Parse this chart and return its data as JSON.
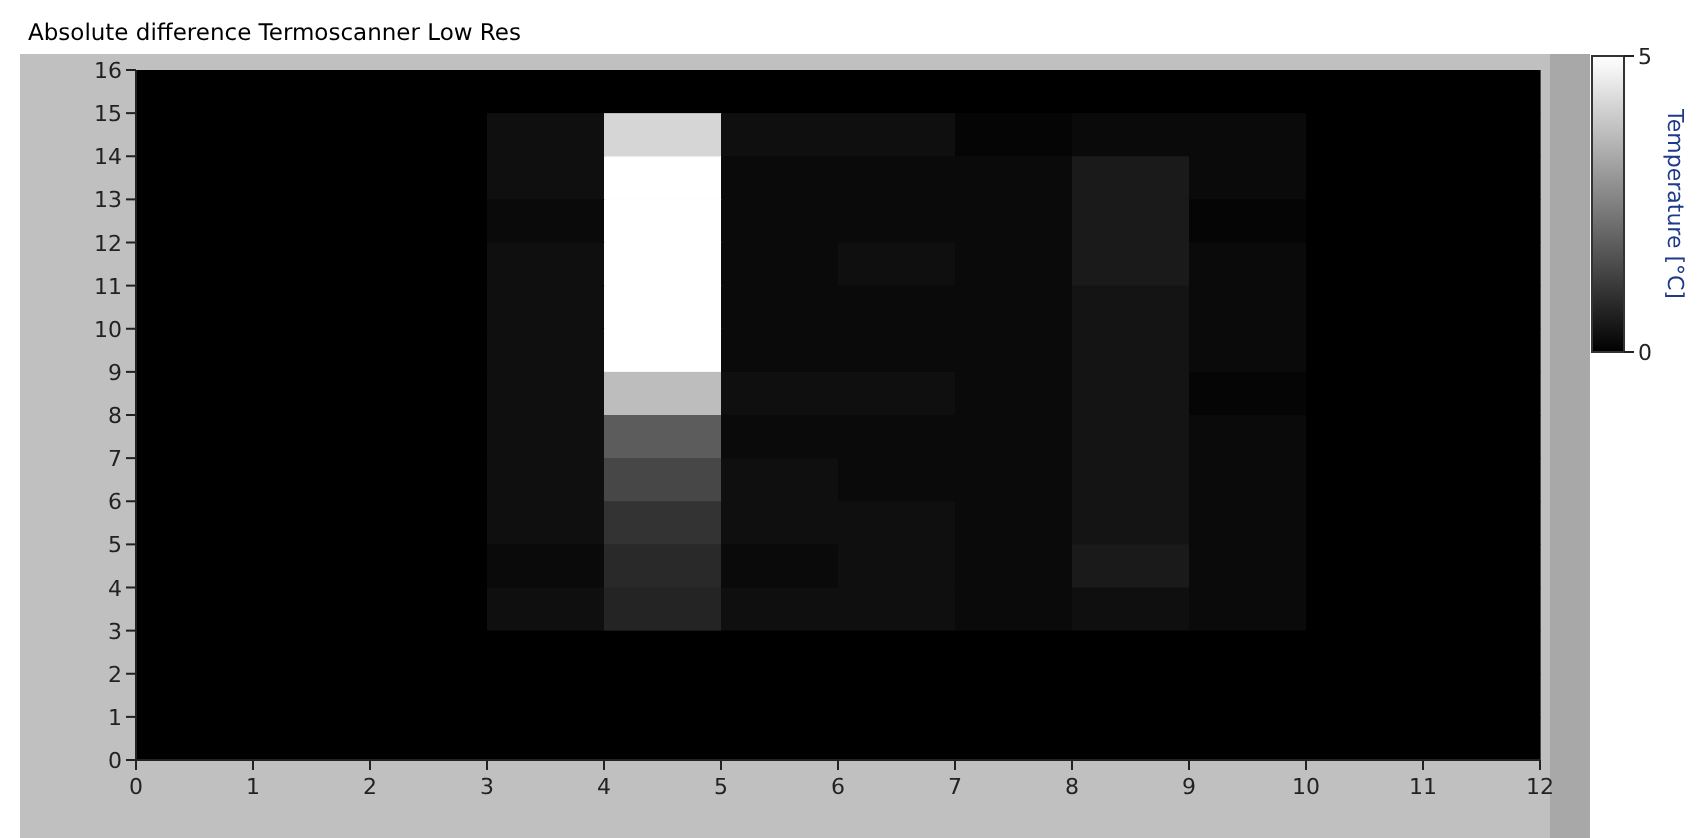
{
  "chart_data": {
    "type": "heatmap",
    "title": "Absolute difference Termoscanner Low Res",
    "clabel": "Temperature [°C]",
    "xlim": [
      0,
      12
    ],
    "xticks": [
      0,
      1,
      2,
      3,
      4,
      5,
      6,
      7,
      8,
      9,
      10,
      11,
      12
    ],
    "ylim": [
      0,
      16
    ],
    "yticks": [
      0,
      1,
      2,
      3,
      4,
      5,
      6,
      7,
      8,
      9,
      10,
      11,
      12,
      13,
      14,
      15,
      16
    ],
    "clim": [
      0,
      5
    ],
    "cticks": [
      0,
      5
    ],
    "cells": [
      [
        0,
        0,
        0,
        0,
        0,
        0,
        0,
        0,
        0,
        0,
        0,
        0
      ],
      [
        0,
        0,
        0,
        0.3,
        4.2,
        0.3,
        0.3,
        0.1,
        0.2,
        0.2,
        0,
        0
      ],
      [
        0,
        0,
        0,
        0.3,
        5,
        0.2,
        0.2,
        0.2,
        0.5,
        0.2,
        0,
        0
      ],
      [
        0,
        0,
        0,
        0.2,
        5,
        0.2,
        0.2,
        0.2,
        0.5,
        0.1,
        0,
        0
      ],
      [
        0,
        0,
        0,
        0.3,
        5,
        0.2,
        0.3,
        0.2,
        0.5,
        0.2,
        0,
        0
      ],
      [
        0,
        0,
        0,
        0.3,
        5,
        0.2,
        0.2,
        0.2,
        0.4,
        0.2,
        0,
        0
      ],
      [
        0,
        0,
        0,
        0.3,
        5,
        0.2,
        0.2,
        0.2,
        0.4,
        0.2,
        0,
        0
      ],
      [
        0,
        0,
        0,
        0.3,
        3.7,
        0.3,
        0.3,
        0.2,
        0.4,
        0.1,
        0,
        0
      ],
      [
        0,
        0,
        0,
        0.3,
        1.8,
        0.2,
        0.2,
        0.2,
        0.4,
        0.2,
        0,
        0
      ],
      [
        0,
        0,
        0,
        0.3,
        1.4,
        0.3,
        0.2,
        0.2,
        0.4,
        0.2,
        0,
        0
      ],
      [
        0,
        0,
        0,
        0.3,
        1.0,
        0.3,
        0.3,
        0.2,
        0.4,
        0.2,
        0,
        0
      ],
      [
        0,
        0,
        0,
        0.2,
        0.8,
        0.2,
        0.3,
        0.2,
        0.5,
        0.2,
        0,
        0
      ],
      [
        0,
        0,
        0,
        0.3,
        0.7,
        0.3,
        0.3,
        0.2,
        0.3,
        0.2,
        0,
        0
      ],
      [
        0,
        0,
        0,
        0,
        0,
        0,
        0,
        0,
        0,
        0,
        0,
        0
      ],
      [
        0,
        0,
        0,
        0,
        0,
        0,
        0,
        0,
        0,
        0,
        0,
        0
      ],
      [
        0,
        0,
        0,
        0,
        0,
        0,
        0,
        0,
        0,
        0,
        0,
        0
      ]
    ]
  }
}
